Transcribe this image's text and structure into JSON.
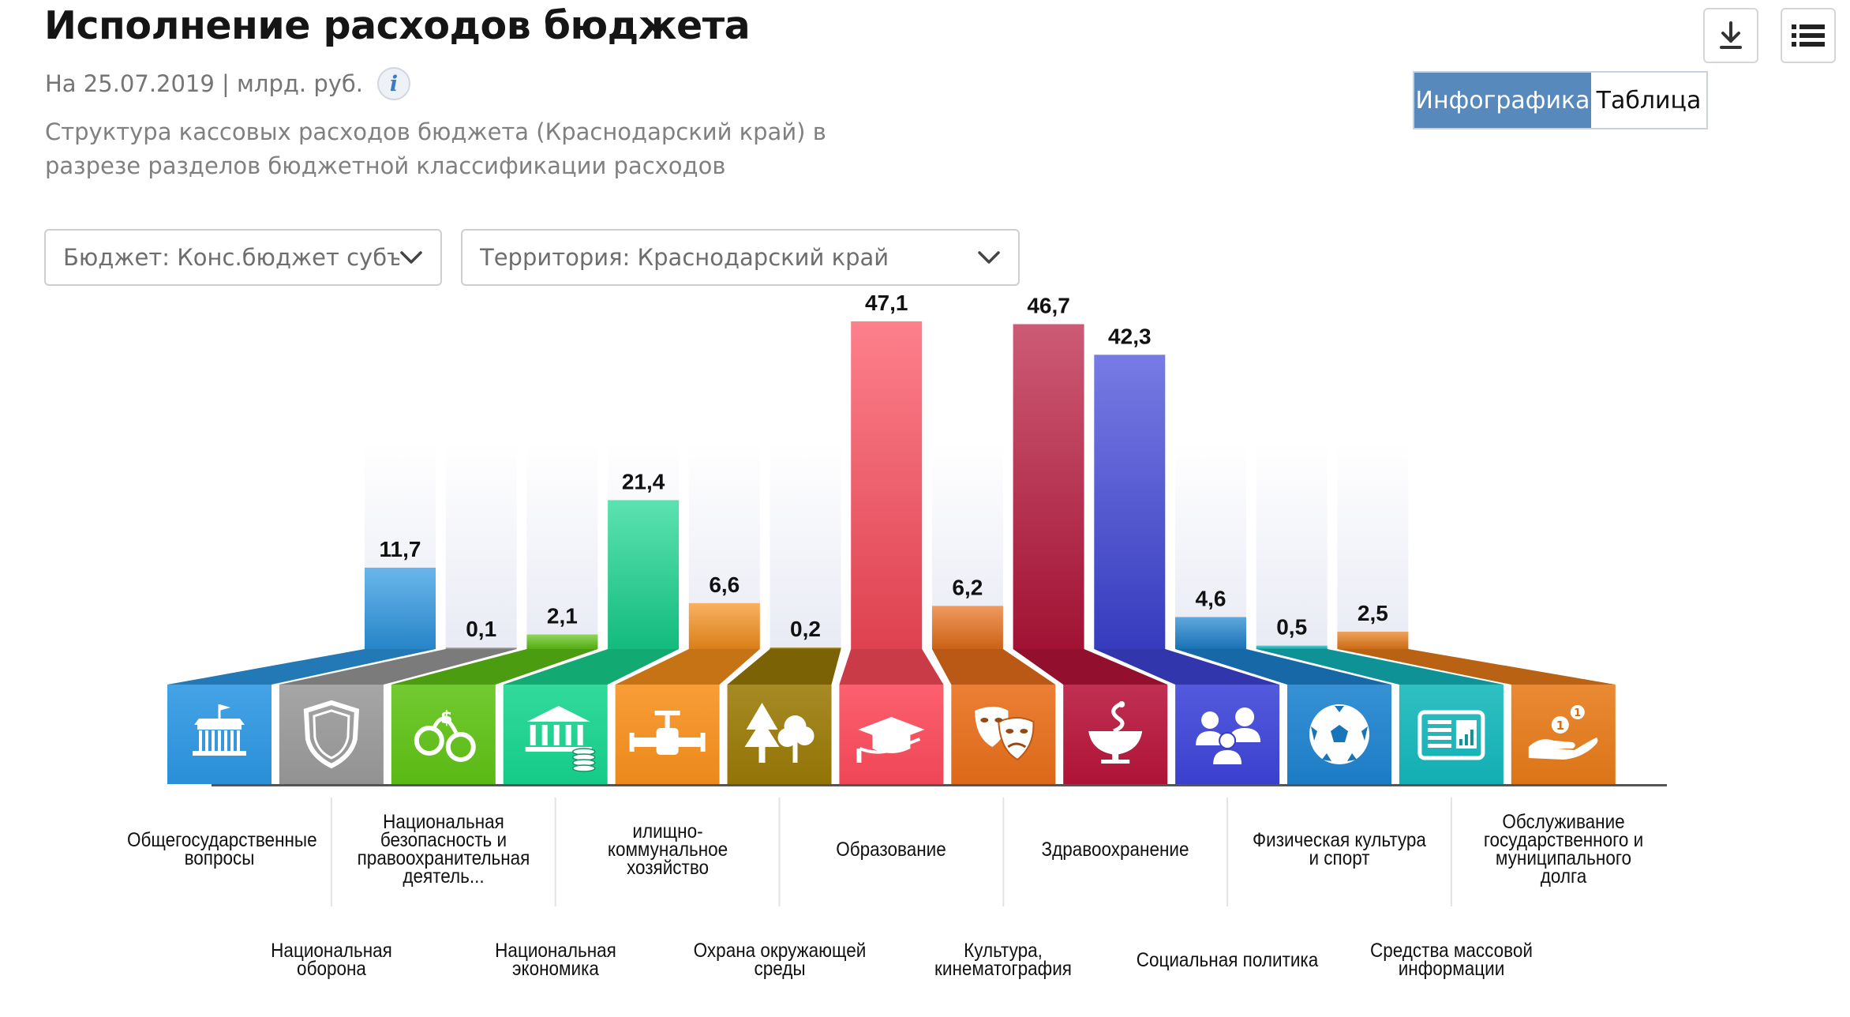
{
  "header": {
    "title": "Исполнение расходов бюджета",
    "subtitle": "На 25.07.2019 | млрд. руб.",
    "info_icon": "info-icon",
    "description": "Структура кассовых расходов бюджета (Краснодарский край) в разрезе разделов бюджетной классификации расходов"
  },
  "toolbar": {
    "download_icon": "download-icon",
    "menu_icon": "menu-icon"
  },
  "view_toggle": {
    "infographic_label": "Инфографика",
    "table_label": "Таблица",
    "active": "Инфографика",
    "active_color": "#5889bd"
  },
  "filters": {
    "budget": {
      "label": "Бюджет: Конс.бюджет субъек",
      "icon": "chevron-down-icon"
    },
    "territory": {
      "label": "Территория: Краснодарский край",
      "icon": "chevron-down-icon"
    }
  },
  "chart_data": {
    "type": "bar",
    "categories": [
      "Общегосударственные вопросы",
      "Национальная оборона",
      "Национальная безопасность и правоохранительная деятель...",
      "Национальная экономика",
      "илищно-коммунальное хозяйство",
      "Охрана окружающей среды",
      "Образование",
      "Культура, кинематография",
      "Здравоохранение",
      "Социальная политика",
      "Физическая культура и спорт",
      "Средства массовой информации",
      "Обслуживание государственного и муниципального долга"
    ],
    "values": [
      11.7,
      0.1,
      2.1,
      21.4,
      6.6,
      0.2,
      47.1,
      6.2,
      46.7,
      42.3,
      4.6,
      0.5,
      2.5
    ],
    "value_labels": [
      "11,7",
      "0,1",
      "2,1",
      "21,4",
      "6,6",
      "0,2",
      "47,1",
      "6,2",
      "46,7",
      "42,3",
      "4,6",
      "0,5",
      "2,5"
    ],
    "colors": [
      "#2c97e3",
      "#9a9a9a",
      "#5fc315",
      "#16d58f",
      "#f7901c",
      "#9a7a06",
      "#fc4a5a",
      "#e86e1a",
      "#b7143a",
      "#3d43d8",
      "#1c82cf",
      "#13b7bb",
      "#e77a18"
    ],
    "icons": [
      "government-building-icon",
      "shield-icon",
      "handcuffs-icon",
      "bank-coins-icon",
      "pipe-valve-icon",
      "trees-icon",
      "graduation-cap-icon",
      "theater-masks-icon",
      "medicine-bowl-icon",
      "family-icon",
      "soccer-ball-icon",
      "newspaper-icon",
      "coins-hand-icon"
    ],
    "ylim": [
      0,
      47.1
    ],
    "grid": false,
    "legend": "none"
  }
}
